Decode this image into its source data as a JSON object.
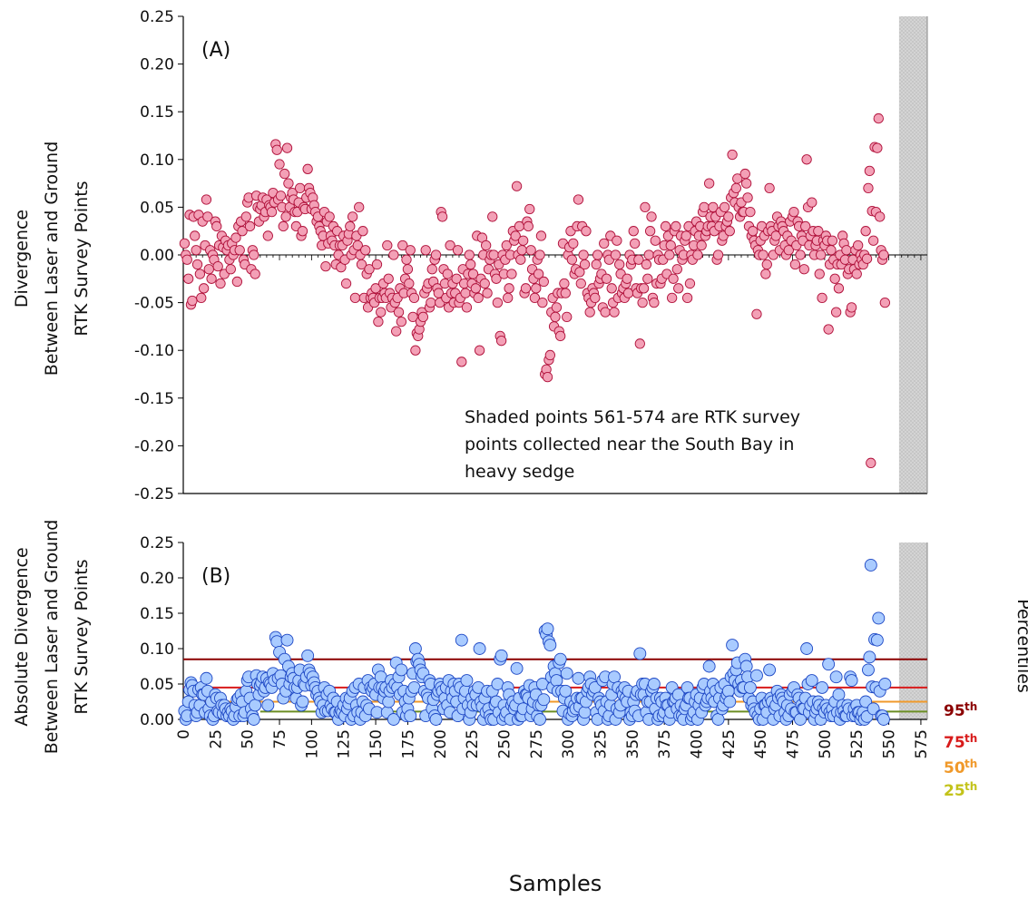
{
  "chart_data": [
    {
      "type": "scatter",
      "panel_label": "(A)",
      "ylabel": [
        "Divergence",
        "Between Laser and Ground",
        "RTK Survey Points"
      ],
      "ylim": [
        -0.25,
        0.25
      ],
      "yticks": [
        "-0.25",
        "-0.20",
        "-0.15",
        "-0.10",
        "-0.05",
        "0.00",
        "0.05",
        "0.10",
        "0.15",
        "0.20",
        "0.25"
      ],
      "xlim": [
        0,
        580
      ],
      "shaded_range": [
        561,
        574
      ],
      "annotation": [
        "Shaded points 561-574 are RTK survey",
        "points collected near the South Bay in",
        "heavy sedge"
      ],
      "marker_fill": "#f3a0b6",
      "marker_stroke": "#b0103a",
      "x_start": 1,
      "y": [
        0.012,
        0.0,
        -0.005,
        -0.025,
        0.042,
        -0.052,
        -0.048,
        0.04,
        0.02,
        0.005,
        -0.01,
        0.042,
        -0.02,
        -0.045,
        0.035,
        -0.035,
        0.01,
        0.058,
        0.04,
        -0.015,
        0.005,
        -0.025,
        0.0,
        -0.005,
        0.035,
        0.03,
        -0.012,
        0.01,
        -0.03,
        0.02,
        0.008,
        -0.02,
        0.015,
        0.005,
        0.01,
        -0.005,
        -0.015,
        0.012,
        0.0,
        0.005,
        0.018,
        -0.028,
        0.03,
        0.005,
        0.035,
        0.025,
        -0.005,
        -0.01,
        0.04,
        0.055,
        0.06,
        0.03,
        -0.015,
        0.005,
        0.0,
        -0.02,
        0.062,
        0.05,
        0.035,
        0.048,
        0.052,
        0.06,
        0.04,
        0.045,
        0.058,
        0.02,
        0.052,
        0.05,
        0.045,
        0.065,
        0.055,
        0.116,
        0.11,
        0.058,
        0.095,
        0.062,
        0.05,
        0.03,
        0.085,
        0.04,
        0.112,
        0.075,
        0.05,
        0.06,
        0.065,
        0.058,
        0.045,
        0.03,
        0.045,
        0.055,
        0.07,
        0.02,
        0.025,
        0.05,
        0.048,
        0.06,
        0.09,
        0.07,
        0.065,
        0.048,
        0.06,
        0.052,
        0.045,
        0.035,
        0.04,
        0.03,
        0.025,
        0.01,
        0.02,
        0.045,
        -0.012,
        0.035,
        0.012,
        0.04,
        0.02,
        0.015,
        0.03,
        0.01,
        -0.01,
        0.025,
        0.0,
        0.01,
        -0.013,
        0.01,
        0.02,
        -0.005,
        -0.03,
        0.015,
        0.022,
        0.03,
        0.0,
        0.04,
        0.005,
        -0.045,
        0.02,
        0.01,
        0.05,
        0.0,
        -0.01,
        0.025,
        -0.045,
        0.005,
        -0.02,
        -0.055,
        -0.015,
        -0.045,
        -0.04,
        -0.045,
        -0.05,
        -0.035,
        -0.01,
        -0.07,
        -0.045,
        -0.06,
        -0.045,
        -0.03,
        -0.04,
        -0.045,
        0.01,
        -0.025,
        -0.04,
        -0.055,
        -0.045,
        0.0,
        -0.05,
        -0.08,
        -0.045,
        -0.06,
        -0.035,
        -0.07,
        0.01,
        -0.04,
        -0.025,
        -0.005,
        -0.015,
        -0.03,
        0.005,
        -0.04,
        -0.065,
        -0.045,
        -0.1,
        -0.082,
        -0.085,
        -0.078,
        -0.07,
        -0.06,
        -0.065,
        -0.04,
        0.005,
        -0.035,
        -0.03,
        -0.055,
        -0.05,
        -0.015,
        -0.028,
        -0.005,
        0.0,
        -0.035,
        -0.04,
        -0.05,
        0.045,
        0.04,
        -0.015,
        -0.03,
        -0.045,
        -0.02,
        -0.055,
        0.01,
        -0.04,
        -0.03,
        -0.05,
        -0.04,
        -0.025,
        0.005,
        -0.05,
        -0.045,
        -0.112,
        -0.015,
        -0.03,
        -0.04,
        -0.055,
        -0.02,
        0.0,
        -0.01,
        -0.03,
        -0.02,
        -0.04,
        -0.035,
        0.02,
        -0.045,
        -0.1,
        -0.025,
        0.018,
        0.0,
        -0.03,
        0.01,
        -0.04,
        -0.015,
        -0.005,
        0.0,
        0.04,
        0.0,
        -0.02,
        -0.025,
        -0.05,
        -0.01,
        -0.085,
        -0.09,
        0.0,
        -0.02,
        -0.005,
        0.01,
        -0.045,
        -0.035,
        0.0,
        -0.02,
        0.025,
        0.015,
        0.02,
        0.072,
        0.0,
        0.03,
        -0.005,
        0.005,
        0.015,
        -0.04,
        -0.035,
        0.035,
        0.03,
        0.048,
        0.005,
        -0.015,
        -0.025,
        -0.045,
        -0.035,
        -0.005,
        -0.02,
        0.0,
        0.02,
        -0.05,
        -0.028,
        -0.125,
        -0.12,
        -0.128,
        -0.11,
        -0.105,
        -0.06,
        -0.045,
        -0.075,
        -0.065,
        -0.055,
        -0.04,
        -0.08,
        -0.085,
        -0.04,
        0.012,
        -0.03,
        -0.04,
        -0.065,
        0.0,
        0.008,
        0.025,
        -0.005,
        0.012,
        -0.02,
        -0.015,
        0.03,
        0.058,
        -0.018,
        -0.03,
        0.03,
        0.0,
        -0.01,
        0.025,
        -0.04,
        -0.045,
        -0.06,
        -0.05,
        -0.035,
        -0.04,
        -0.045,
        -0.01,
        0.0,
        -0.03,
        -0.025,
        -0.02,
        -0.055,
        0.012,
        -0.06,
        -0.025,
        0.0,
        -0.005,
        0.02,
        -0.035,
        -0.05,
        -0.06,
        0.0,
        0.015,
        -0.045,
        -0.01,
        -0.02,
        -0.04,
        -0.035,
        -0.045,
        -0.03,
        -0.025,
        -0.04,
        0.0,
        -0.01,
        -0.005,
        0.025,
        0.012,
        -0.035,
        -0.04,
        -0.005,
        -0.093,
        -0.035,
        -0.05,
        -0.035,
        0.05,
        -0.01,
        -0.025,
        0.0,
        0.025,
        0.04,
        -0.045,
        -0.05,
        0.015,
        -0.03,
        0.0,
        -0.005,
        -0.03,
        -0.025,
        -0.005,
        0.01,
        0.03,
        -0.02,
        0.02,
        0.0,
        0.01,
        -0.045,
        -0.025,
        0.025,
        0.03,
        -0.015,
        -0.035,
        0.005,
        0.02,
        -0.005,
        0.0,
        0.015,
        0.02,
        -0.045,
        0.03,
        -0.03,
        0.0,
        -0.005,
        0.01,
        0.025,
        0.035,
        0.0,
        0.02,
        0.03,
        0.01,
        0.045,
        0.05,
        0.02,
        0.025,
        0.03,
        0.075,
        0.04,
        0.03,
        0.05,
        0.025,
        0.04,
        -0.005,
        0.0,
        0.03,
        0.045,
        0.015,
        0.02,
        0.05,
        0.03,
        0.035,
        0.04,
        0.025,
        0.06,
        0.105,
        0.065,
        0.055,
        0.07,
        0.08,
        0.05,
        0.04,
        0.055,
        0.045,
        0.045,
        0.085,
        0.075,
        0.06,
        0.03,
        0.045,
        0.02,
        0.025,
        0.015,
        0.01,
        -0.062,
        0.005,
        0.0,
        0.015,
        0.03,
        0.0,
        0.02,
        -0.02,
        -0.01,
        0.025,
        0.07,
        0.03,
        0.025,
        0.0,
        0.015,
        0.02,
        0.04,
        0.03,
        0.005,
        0.035,
        0.03,
        0.025,
        0.01,
        0.0,
        0.02,
        0.005,
        0.035,
        0.015,
        0.04,
        0.045,
        -0.01,
        0.01,
        0.035,
        0.03,
        0.0,
        0.02,
        0.015,
        -0.015,
        0.03,
        0.1,
        0.05,
        0.01,
        0.02,
        0.055,
        0.025,
        0.0,
        0.01,
        0.015,
        0.025,
        -0.02,
        0.0,
        -0.045,
        0.015,
        0.01,
        0.02,
        0.015,
        -0.078,
        -0.01,
        0.005,
        0.015,
        -0.005,
        -0.025,
        -0.06,
        -0.01,
        -0.035,
        0.0,
        -0.01,
        0.02,
        0.012,
        -0.005,
        0.005,
        -0.02,
        -0.015,
        -0.06,
        -0.055,
        -0.005,
        -0.015,
        0.005,
        -0.02,
        0.01,
        -0.01,
        0.0,
        -0.005,
        -0.01,
        0.0,
        0.025,
        -0.004,
        0.07,
        0.088,
        -0.218,
        0.046,
        0.015,
        0.113,
        0.045,
        0.112,
        0.143,
        0.04,
        0.005,
        -0.005,
        0.0,
        -0.05
      ]
    },
    {
      "type": "scatter",
      "panel_label": "(B)",
      "ylabel": [
        "Absolute Divergence",
        "Between Laser and Ground",
        "RTK Survey Points"
      ],
      "ylim": [
        0.0,
        0.25
      ],
      "yticks": [
        "0.00",
        "0.05",
        "0.10",
        "0.15",
        "0.20",
        "0.25"
      ],
      "xlim": [
        0,
        580
      ],
      "xlabel": "Samples",
      "xticks": [
        0,
        25,
        50,
        75,
        100,
        125,
        150,
        175,
        200,
        225,
        250,
        275,
        300,
        325,
        350,
        375,
        400,
        425,
        450,
        475,
        500,
        525,
        550,
        575
      ],
      "shaded_range": [
        561,
        574
      ],
      "marker_fill": "#a9cbff",
      "marker_stroke": "#1d47c4",
      "y_source": "absolute value of panel (A) values",
      "percentile_axis_label": "Percentiles",
      "percentiles": [
        {
          "label": "95",
          "suffix": "th",
          "value": 0.085,
          "color": "#8b0000"
        },
        {
          "label": "75",
          "suffix": "th",
          "value": 0.045,
          "color": "#d81b1b"
        },
        {
          "label": "50",
          "suffix": "th",
          "value": 0.025,
          "color": "#f0992a"
        },
        {
          "label": "25",
          "suffix": "th",
          "value": 0.011,
          "color": "#c3c31a"
        }
      ],
      "percentile_25_line_color": "#6b8e23"
    }
  ]
}
